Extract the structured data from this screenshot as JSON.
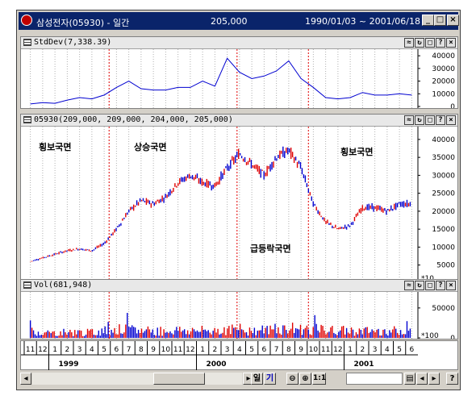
{
  "window": {
    "title": "삼성전자(05930) - 일간",
    "price": "205,000",
    "date_range": "1990/01/03 ~ 2001/06/18",
    "buttons": {
      "minimize": "_",
      "maximize": "□",
      "close": "×"
    }
  },
  "panes": {
    "stddev": {
      "title": "StdDev(7,338.39)",
      "y_ticks": [
        "40000",
        "30000",
        "20000",
        "10000",
        "0"
      ],
      "ylim": [
        0,
        42000
      ]
    },
    "price": {
      "title": "05930(209,000, 209,000, 204,000, 205,000)",
      "y_ticks": [
        "40000",
        "35000",
        "30000",
        "25000",
        "20000",
        "15000",
        "10000",
        "5000"
      ],
      "multiplier": "*10",
      "ylim": [
        2000,
        42000
      ],
      "phases": [
        "횡보국면",
        "상승국면",
        "급등락국면",
        "횡보국면"
      ]
    },
    "volume": {
      "title": "Vol(681,948)",
      "y_ticks": [
        "50000",
        "0"
      ],
      "multiplier": "*100",
      "ylim": [
        0,
        70000
      ]
    }
  },
  "pane_buttons": [
    "≈",
    "↻",
    "□",
    "?",
    "×"
  ],
  "x_axis": {
    "months": [
      "11",
      "12",
      "1",
      "2",
      "3",
      "4",
      "5",
      "6",
      "7",
      "8",
      "9",
      "10",
      "11",
      "12",
      "1",
      "2",
      "3",
      "4",
      "5",
      "6",
      "7",
      "8",
      "9",
      "10",
      "11",
      "12",
      "1",
      "2",
      "3",
      "4",
      "5",
      "6"
    ],
    "years": [
      {
        "label": "1999",
        "index": 2
      },
      {
        "label": "2000",
        "index": 14
      },
      {
        "label": "2001",
        "index": 26
      }
    ],
    "dividers": [
      6.9,
      17.3,
      23.1
    ]
  },
  "toolbar": {
    "day": "일",
    "period": "기",
    "zoom_out": "⊖",
    "zoom_in": "⊕",
    "ratio": "1:1",
    "help": "?"
  },
  "chart_data": {
    "type": "line",
    "x": [
      "1998/11",
      "1998/12",
      "1999/01",
      "1999/02",
      "1999/03",
      "1999/04",
      "1999/05",
      "1999/06",
      "1999/07",
      "1999/08",
      "1999/09",
      "1999/10",
      "1999/11",
      "1999/12",
      "2000/01",
      "2000/02",
      "2000/03",
      "2000/04",
      "2000/05",
      "2000/06",
      "2000/07",
      "2000/08",
      "2000/09",
      "2000/10",
      "2000/11",
      "2000/12",
      "2001/01",
      "2001/02",
      "2001/03",
      "2001/04",
      "2001/05",
      "2001/06"
    ],
    "series": [
      {
        "name": "05930",
        "values": [
          6000,
          7000,
          8000,
          9000,
          9500,
          9000,
          11000,
          15000,
          20000,
          23000,
          22000,
          24000,
          28000,
          30000,
          28000,
          27000,
          32000,
          36000,
          33000,
          30000,
          35000,
          37000,
          32000,
          22000,
          17000,
          15000,
          16000,
          21000,
          21000,
          20000,
          22000,
          22000
        ]
      },
      {
        "name": "StdDev",
        "values": [
          2000,
          3000,
          2500,
          5000,
          7000,
          6000,
          9000,
          15000,
          20000,
          14000,
          13000,
          13000,
          15000,
          15000,
          20000,
          16000,
          38000,
          27000,
          22000,
          24000,
          28000,
          36000,
          22000,
          15000,
          7000,
          6000,
          7000,
          11000,
          9000,
          9000,
          10000,
          9000
        ]
      },
      {
        "name": "Vol",
        "values": [
          12000,
          9000,
          8000,
          10000,
          9000,
          9000,
          12000,
          14000,
          13000,
          12000,
          11000,
          12000,
          13000,
          12000,
          12000,
          13000,
          14000,
          14000,
          12000,
          13000,
          14000,
          16000,
          15000,
          14000,
          13000,
          12000,
          12000,
          11000,
          12000,
          11000,
          12000,
          12000
        ]
      }
    ]
  }
}
